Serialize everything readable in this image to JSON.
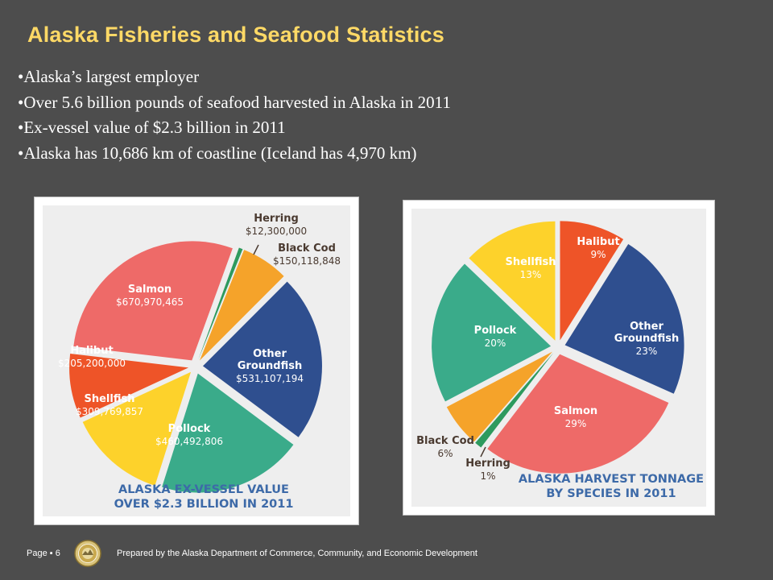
{
  "slide": {
    "title": "Alaska Fisheries and Seafood Statistics",
    "bullets": [
      "Alaska’s largest employer",
      "Over 5.6 billion pounds of seafood harvested in Alaska in 2011",
      "Ex-vessel value of $2.3 billion in 2011",
      "Alaska has 10,686 km of coastline (Iceland has 4,970 km)"
    ]
  },
  "footer": {
    "page_label": "Page ▪ 6",
    "prepared_by": "Prepared by the Alaska Department of Commerce, Community, and Economic Development",
    "seal_icon": "state-seal-icon"
  },
  "colors": {
    "background": "#4d4d4d",
    "title": "#ffd966",
    "caption": "#3d6aa8",
    "label_dark": "#4a3a30"
  },
  "chart_data": [
    {
      "type": "pie",
      "title": "ALASKA EX-VESSEL VALUE\nOVER $2.3 BILLION IN 2011",
      "exploded": true,
      "slices": [
        {
          "name": "Herring",
          "value_label": "$12,300,000",
          "value": 12300000,
          "color": "#2e9a5e"
        },
        {
          "name": "Black Cod",
          "value_label": "$150,118,848",
          "value": 150118848,
          "color": "#f5a32a"
        },
        {
          "name": "Other Groundfish",
          "value_label": "$531,107,194",
          "value": 531107194,
          "color": "#2f4f8f"
        },
        {
          "name": "Pollock",
          "value_label": "$460,492,806",
          "value": 460492806,
          "color": "#3aab8a"
        },
        {
          "name": "Shellfish",
          "value_label": "$309,769,857",
          "value": 309769857,
          "color": "#fdd22b"
        },
        {
          "name": "Halibut",
          "value_label": "$205,200,000",
          "value": 205200000,
          "color": "#ee5428"
        },
        {
          "name": "Salmon",
          "value_label": "$670,970,465",
          "value": 670970465,
          "color": "#ee6a68"
        }
      ]
    },
    {
      "type": "pie",
      "title": "ALASKA HARVEST TONNAGE\nBY SPECIES IN 2011",
      "exploded": true,
      "slices": [
        {
          "name": "Halibut",
          "value_label": "9%",
          "value": 9,
          "color": "#ee5428"
        },
        {
          "name": "Other Groundfish",
          "value_label": "23%",
          "value": 23,
          "color": "#2f4f8f"
        },
        {
          "name": "Salmon",
          "value_label": "29%",
          "value": 29,
          "color": "#ee6a68"
        },
        {
          "name": "Herring",
          "value_label": "1%",
          "value": 1,
          "color": "#2e9a5e"
        },
        {
          "name": "Black Cod",
          "value_label": "6%",
          "value": 6,
          "color": "#f5a32a"
        },
        {
          "name": "Pollock",
          "value_label": "20%",
          "value": 20,
          "color": "#3aab8a"
        },
        {
          "name": "Shellfish",
          "value_label": "13%",
          "value": 13,
          "color": "#fdd22b"
        }
      ]
    }
  ]
}
